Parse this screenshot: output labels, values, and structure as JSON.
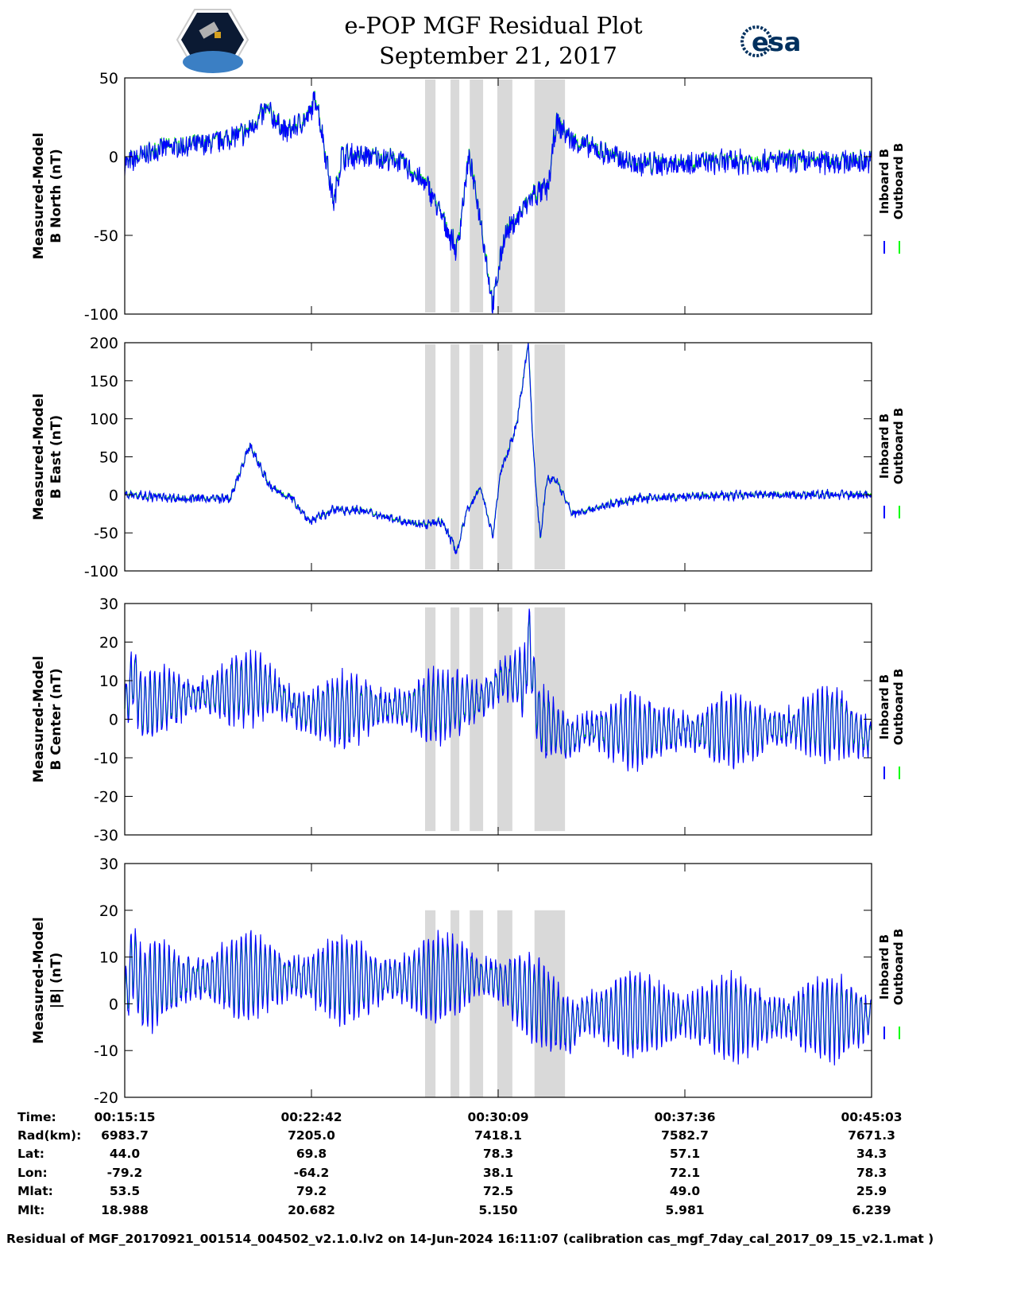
{
  "header": {
    "title_line1": "e-POP MGF Residual Plot",
    "title_line2": "September 21, 2017",
    "left_logo": "CASSIOPE",
    "right_logo": "esa"
  },
  "colors": {
    "inboard": "#0000ff",
    "outboard": "#00ff00",
    "band": "#d9d9d9"
  },
  "chart_data": {
    "type": "line",
    "x_unit": "seconds since 00:15:15",
    "xlim": [
      0,
      1788
    ],
    "x_ticks": [
      0,
      447,
      894,
      1341,
      1788
    ],
    "legend": [
      "Inboard B",
      "Outboard B"
    ],
    "legend_placement": "right",
    "gray_bands": [
      [
        719,
        744
      ],
      [
        780,
        801
      ],
      [
        826,
        858
      ],
      [
        892,
        928
      ],
      [
        981,
        1054
      ]
    ],
    "panels": [
      {
        "ylabel_line1": "Measured-Model",
        "ylabel_line2": "B North (nT)",
        "ylim": [
          -100,
          50
        ],
        "yticks": [
          "50",
          "0",
          "-50",
          "-100"
        ],
        "ytick_values": [
          50,
          0,
          -50,
          -100
        ],
        "band_range": [
          -99,
          49
        ],
        "key_points": [
          [
            0,
            -5
          ],
          [
            82,
            5
          ],
          [
            200,
            8
          ],
          [
            291,
            15
          ],
          [
            340,
            30
          ],
          [
            386,
            15
          ],
          [
            440,
            25
          ],
          [
            458,
            38
          ],
          [
            500,
            -30
          ],
          [
            519,
            0
          ],
          [
            595,
            0
          ],
          [
            660,
            -3
          ],
          [
            728,
            -20
          ],
          [
            795,
            -60
          ],
          [
            824,
            0
          ],
          [
            852,
            -40
          ],
          [
            881,
            -95
          ],
          [
            909,
            -50
          ],
          [
            938,
            -40
          ],
          [
            976,
            -25
          ],
          [
            1014,
            -20
          ],
          [
            1033,
            22
          ],
          [
            1071,
            10
          ],
          [
            1223,
            -5
          ],
          [
            1500,
            -3
          ],
          [
            1788,
            -3
          ]
        ],
        "noise": 7,
        "osc_amp": 2
      },
      {
        "ylabel_line1": "Measured-Model",
        "ylabel_line2": "B East (nT)",
        "ylim": [
          -100,
          200
        ],
        "yticks": [
          "200",
          "150",
          "100",
          "50",
          "0",
          "-50",
          "-100"
        ],
        "ytick_values": [
          200,
          150,
          100,
          50,
          0,
          -50,
          -100
        ],
        "band_range": [
          -98,
          198
        ],
        "key_points": [
          [
            0,
            0
          ],
          [
            140,
            -5
          ],
          [
            253,
            -5
          ],
          [
            300,
            65
          ],
          [
            348,
            10
          ],
          [
            400,
            -5
          ],
          [
            443,
            -35
          ],
          [
            500,
            -20
          ],
          [
            560,
            -20
          ],
          [
            633,
            -30
          ],
          [
            719,
            -40
          ],
          [
            760,
            -35
          ],
          [
            795,
            -75
          ],
          [
            820,
            -20
          ],
          [
            852,
            10
          ],
          [
            881,
            -55
          ],
          [
            900,
            30
          ],
          [
            938,
            90
          ],
          [
            966,
            200
          ],
          [
            980,
            40
          ],
          [
            995,
            -60
          ],
          [
            1010,
            20
          ],
          [
            1033,
            20
          ],
          [
            1071,
            -25
          ],
          [
            1223,
            -5
          ],
          [
            1500,
            0
          ],
          [
            1788,
            0
          ]
        ],
        "noise": 5,
        "osc_amp": 3
      },
      {
        "ylabel_line1": "Measured-Model",
        "ylabel_line2": "B Center (nT)",
        "ylim": [
          -30,
          30
        ],
        "yticks": [
          "30",
          "20",
          "10",
          "0",
          "-10",
          "-20",
          "-30"
        ],
        "ytick_values": [
          30,
          20,
          10,
          0,
          -10,
          -20,
          -30
        ],
        "band_range": [
          -29,
          29
        ],
        "key_points": [
          [
            0,
            2
          ],
          [
            20,
            12
          ],
          [
            40,
            3
          ],
          [
            100,
            5
          ],
          [
            291,
            8
          ],
          [
            340,
            8
          ],
          [
            420,
            2
          ],
          [
            600,
            3
          ],
          [
            719,
            3
          ],
          [
            852,
            5
          ],
          [
            900,
            10
          ],
          [
            960,
            10
          ],
          [
            966,
            22
          ],
          [
            990,
            0
          ],
          [
            1071,
            -5
          ],
          [
            1100,
            -3
          ],
          [
            1500,
            -3
          ],
          [
            1700,
            -1
          ],
          [
            1788,
            -5
          ]
        ],
        "noise": 2,
        "osc_amp": 9
      },
      {
        "ylabel_line1": "Measured-Model",
        "ylabel_line2": "|B| (nT)",
        "ylim": [
          -20,
          30
        ],
        "yticks": [
          "30",
          "20",
          "10",
          "0",
          "-10",
          "-20"
        ],
        "ytick_values": [
          30,
          20,
          10,
          0,
          -10,
          -20
        ],
        "band_range": [
          -20,
          20
        ],
        "key_points": [
          [
            0,
            0
          ],
          [
            20,
            10
          ],
          [
            40,
            3
          ],
          [
            100,
            5
          ],
          [
            300,
            6
          ],
          [
            600,
            5
          ],
          [
            850,
            6
          ],
          [
            900,
            5
          ],
          [
            960,
            2
          ],
          [
            1040,
            -3
          ],
          [
            1071,
            -5
          ],
          [
            1100,
            -2
          ],
          [
            1500,
            -3
          ],
          [
            1788,
            -3
          ]
        ],
        "noise": 1.5,
        "osc_amp": 9
      }
    ],
    "info_table": {
      "row_labels": [
        "Time:",
        "Rad(km):",
        "Lat:",
        "Lon:",
        "Mlat:",
        "Mlt:"
      ],
      "columns": [
        [
          "00:15:15",
          "6983.7",
          "44.0",
          "-79.2",
          "53.5",
          "18.988"
        ],
        [
          "00:22:42",
          "7205.0",
          "69.8",
          "-64.2",
          "79.2",
          "20.682"
        ],
        [
          "00:30:09",
          "7418.1",
          "78.3",
          "38.1",
          "72.5",
          "5.150"
        ],
        [
          "00:37:36",
          "7582.7",
          "57.1",
          "72.1",
          "49.0",
          "5.981"
        ],
        [
          "00:45:03",
          "7671.3",
          "34.3",
          "78.3",
          "25.9",
          "6.239"
        ]
      ]
    }
  },
  "footer": "Residual of MGF_20170921_001514_004502_v2.1.0.lv2 on 14-Jun-2024 16:11:07 (calibration cas_mgf_7day_cal_2017_09_15_v2.1.mat )"
}
